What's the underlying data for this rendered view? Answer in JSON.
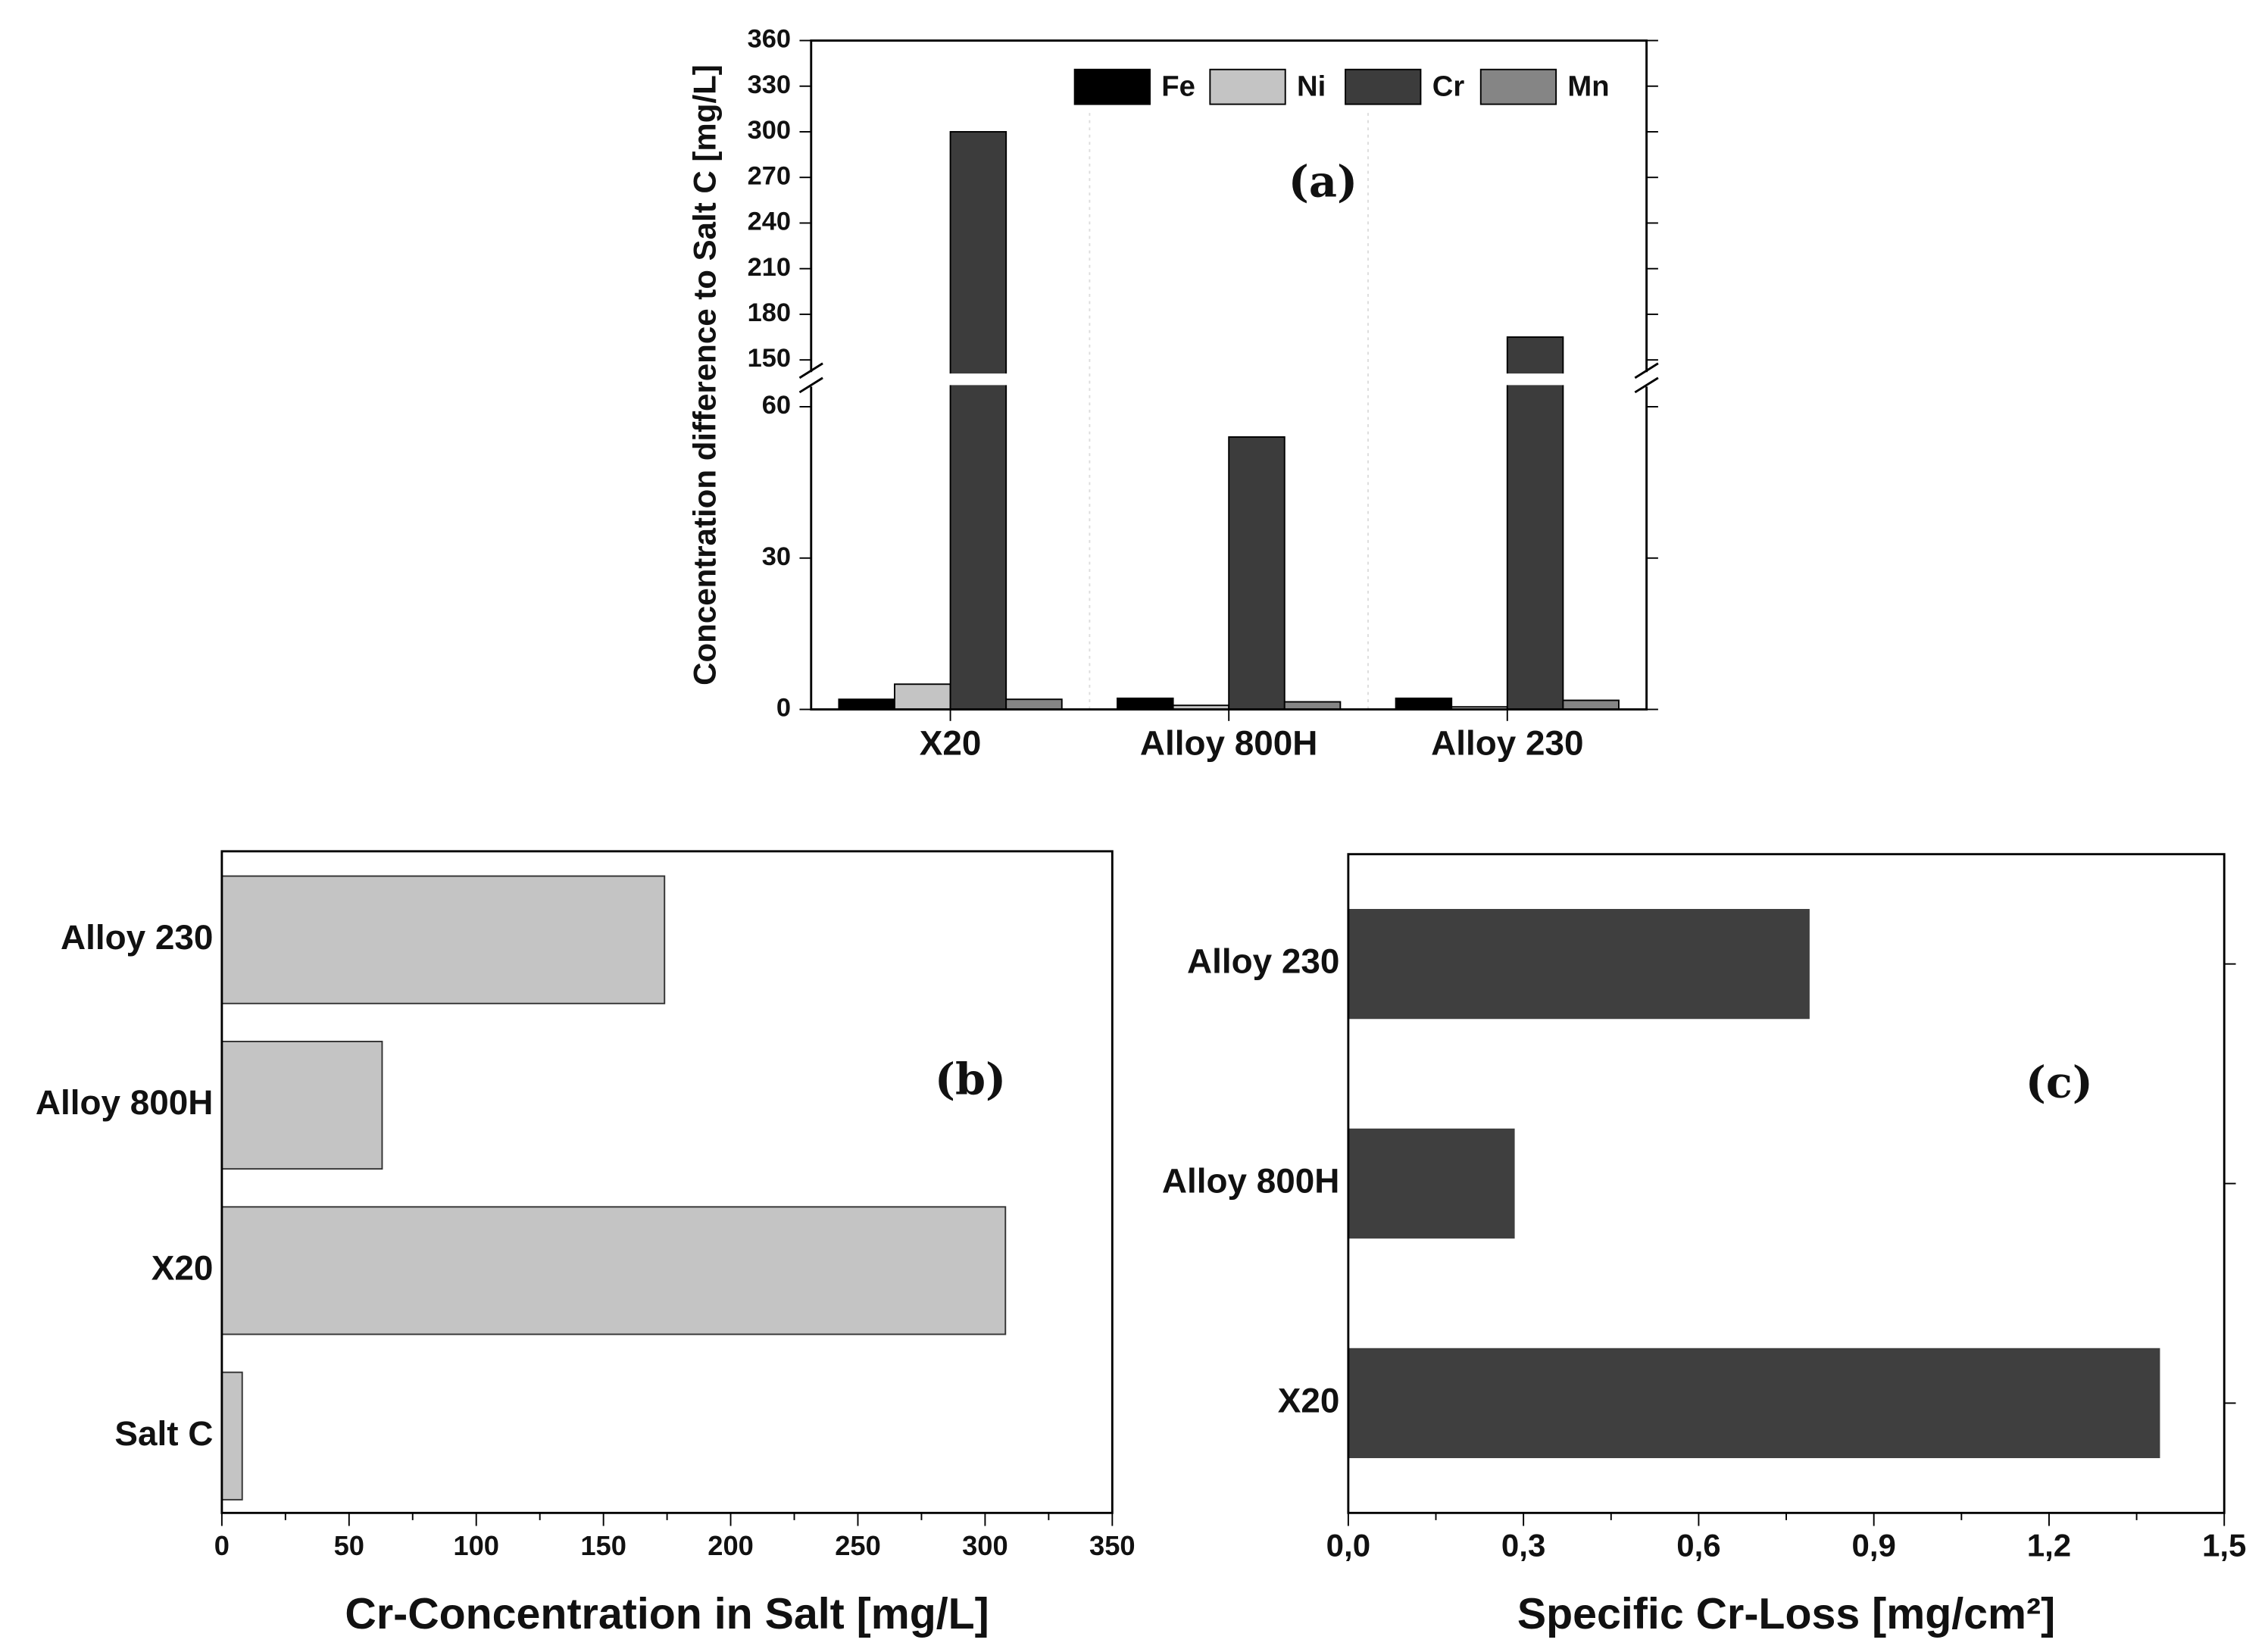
{
  "chart_data": [
    {
      "type": "grouped-bar",
      "y_label": "Concentration difference to Salt C [mg/L]",
      "annotation": "(a)",
      "categories": [
        "X20",
        "Alloy 800H",
        "Alloy 230"
      ],
      "series": [
        {
          "name": "Fe",
          "color": "#000000",
          "values": [
            2,
            2.2,
            2.2
          ]
        },
        {
          "name": "Ni",
          "color": "#c4c4c4",
          "values": [
            5,
            0.8,
            0.5
          ]
        },
        {
          "name": "Cr",
          "color": "#3c3c3c",
          "values": [
            300,
            54,
            165
          ]
        },
        {
          "name": "Mn",
          "color": "#858585",
          "values": [
            2,
            1.5,
            1.8
          ]
        }
      ],
      "ylim": [
        0,
        360
      ],
      "ybreak": [
        64,
        142
      ],
      "yticks": [
        0,
        30,
        60,
        150,
        180,
        210,
        240,
        270,
        300,
        330,
        360
      ],
      "legend": "top-right"
    },
    {
      "type": "hbar",
      "x_label": "Cr-Concentration in Salt [mg/L]",
      "annotation": "(b)",
      "categories": [
        "Salt C",
        "X20",
        "Alloy 800H",
        "Alloy 230"
      ],
      "values": [
        8,
        308,
        63,
        174
      ],
      "color": "#c4c4c4",
      "xlim": [
        0,
        350
      ],
      "xticks": [
        0,
        50,
        100,
        150,
        200,
        250,
        300,
        350
      ]
    },
    {
      "type": "hbar",
      "x_label": "Specific Cr-Loss [mg/cm²]",
      "annotation": "(c)",
      "categories": [
        "X20",
        "Alloy 800H",
        "Alloy 230"
      ],
      "values": [
        1.39,
        0.285,
        0.79
      ],
      "color": "#3f3f3f",
      "xlim": [
        0,
        1.5
      ],
      "xticks": [
        {
          "value": 0,
          "label": "0,0"
        },
        {
          "value": 0.3,
          "label": "0,3"
        },
        {
          "value": 0.6,
          "label": "0,6"
        },
        {
          "value": 0.9,
          "label": "0,9"
        },
        {
          "value": 1.2,
          "label": "1,2"
        },
        {
          "value": 1.5,
          "label": "1,5"
        }
      ]
    }
  ]
}
